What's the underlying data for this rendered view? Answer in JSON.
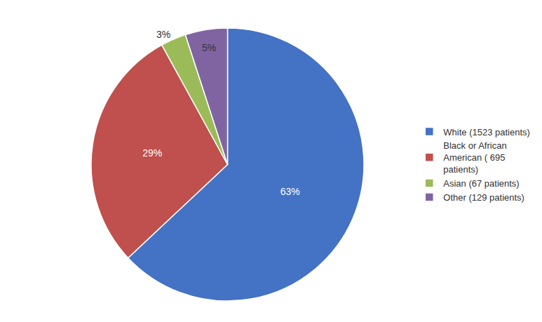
{
  "chart_data": {
    "type": "pie",
    "categories": [
      "White (1523 patients)",
      "Black or African\nAmerican ( 695\npatients)",
      "Asian (67 patients)",
      "Other (129 patients)"
    ],
    "values": [
      63,
      29,
      3,
      5
    ],
    "value_labels": [
      "63%",
      "29%",
      "3%",
      "5%"
    ],
    "colors": [
      "#4472C4",
      "#C0504D",
      "#9BBB59",
      "#8064A2"
    ],
    "data_labels": true,
    "legend": "right"
  }
}
